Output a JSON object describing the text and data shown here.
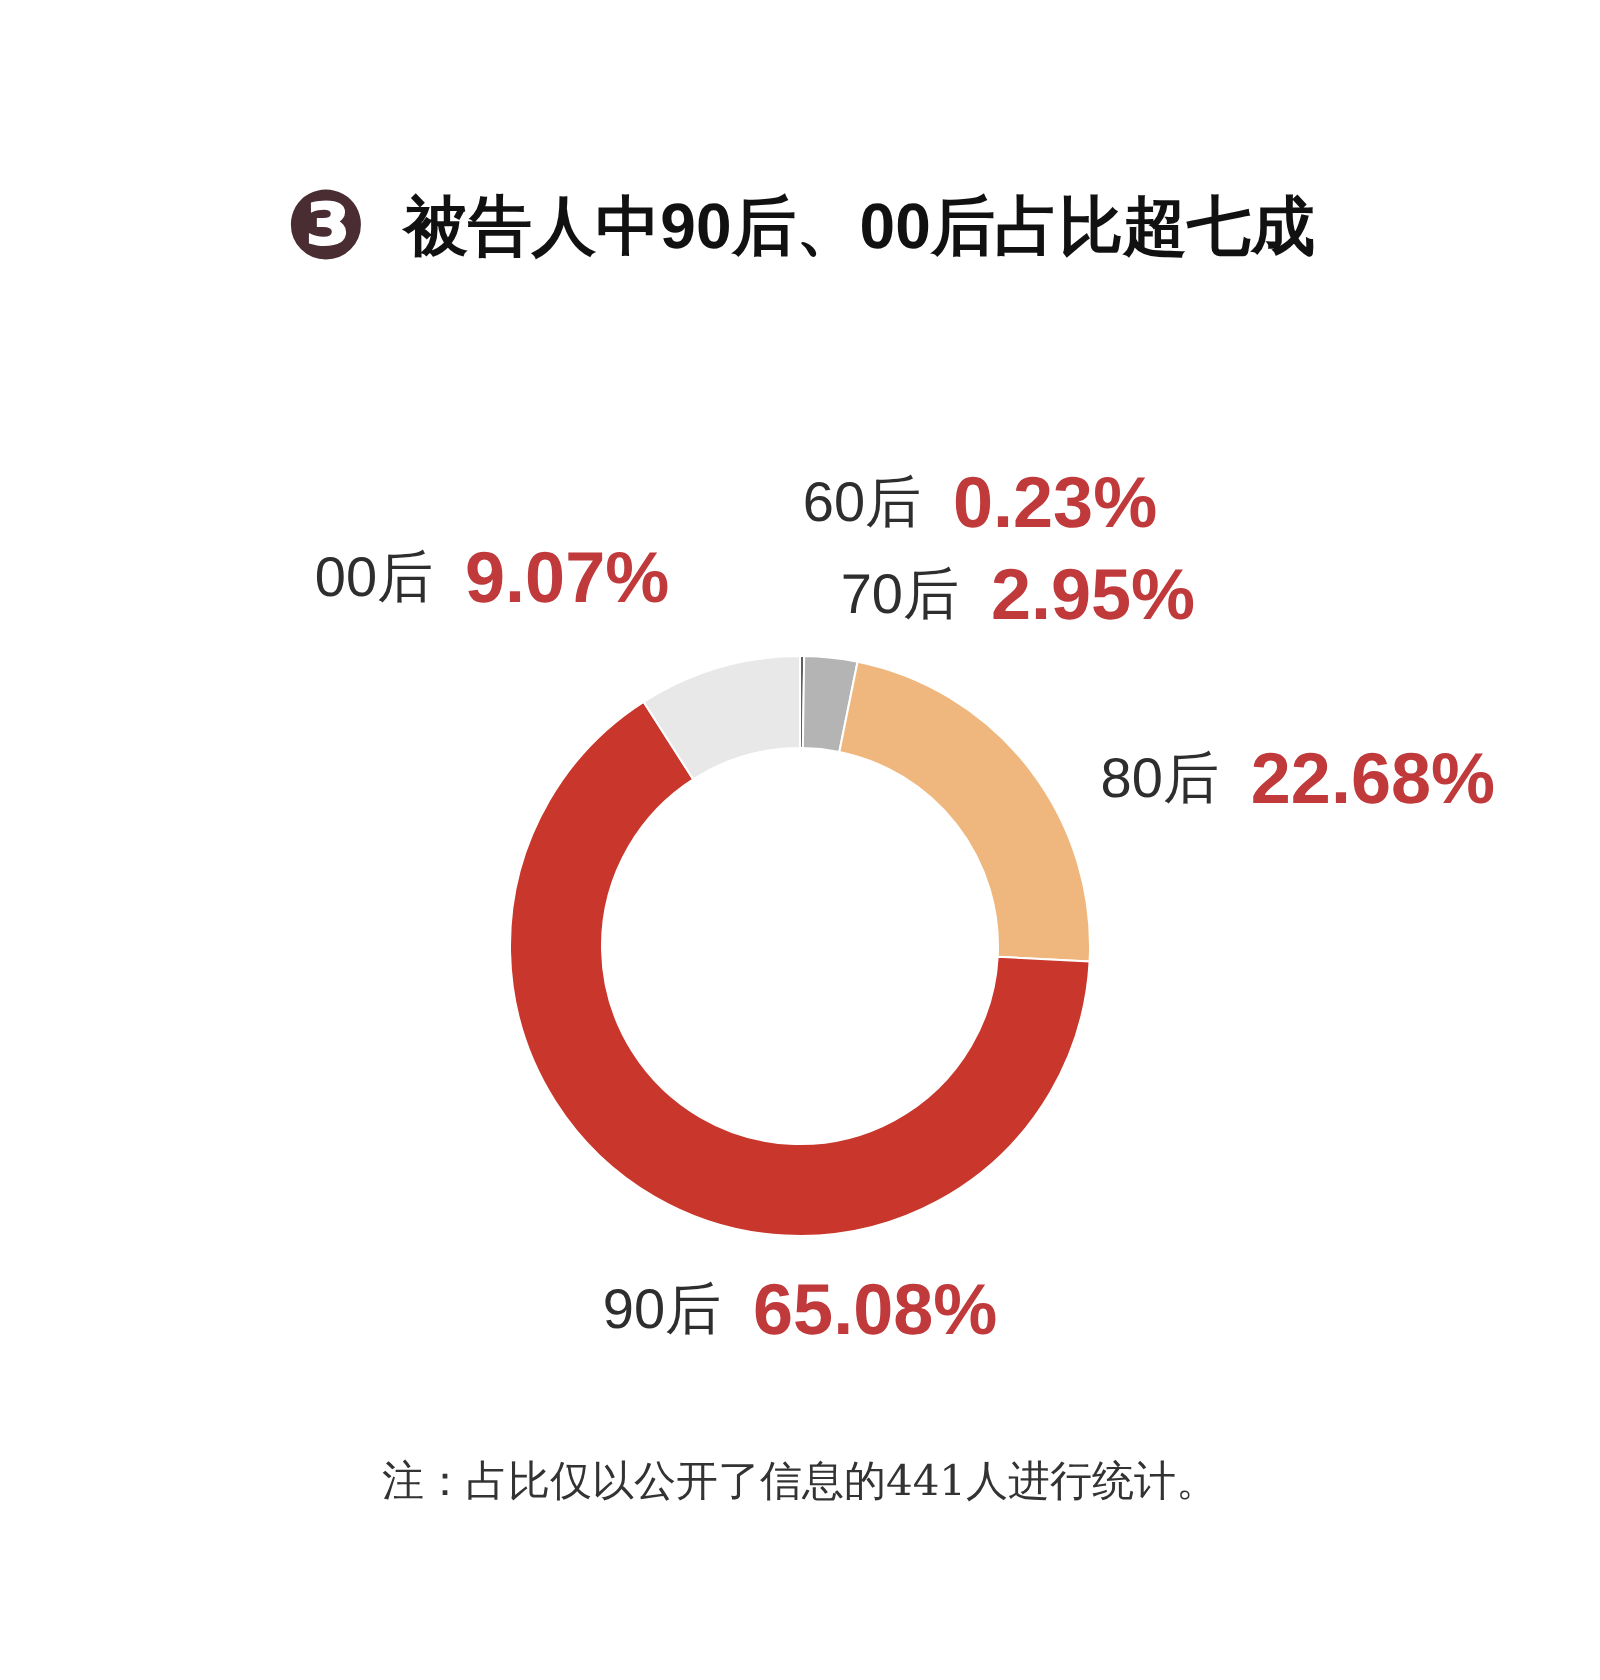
{
  "chart_data": {
    "type": "donut",
    "title": "❸ 被告人中90后、00后占比超七成",
    "categories": [
      "60后",
      "70后",
      "80后",
      "90后",
      "00后"
    ],
    "values": [
      0.23,
      2.95,
      22.68,
      65.08,
      9.07
    ],
    "value_labels": [
      "0.23%",
      "2.95%",
      "22.68%",
      "65.08%",
      "9.07%"
    ],
    "colors": [
      "#5e5e5e",
      "#b4b4b4",
      "#efb77d",
      "#c8362c",
      "#e8e8e8"
    ],
    "annotations": [
      "注：占比仅以公开了信息的441人进行统计。"
    ]
  }
}
